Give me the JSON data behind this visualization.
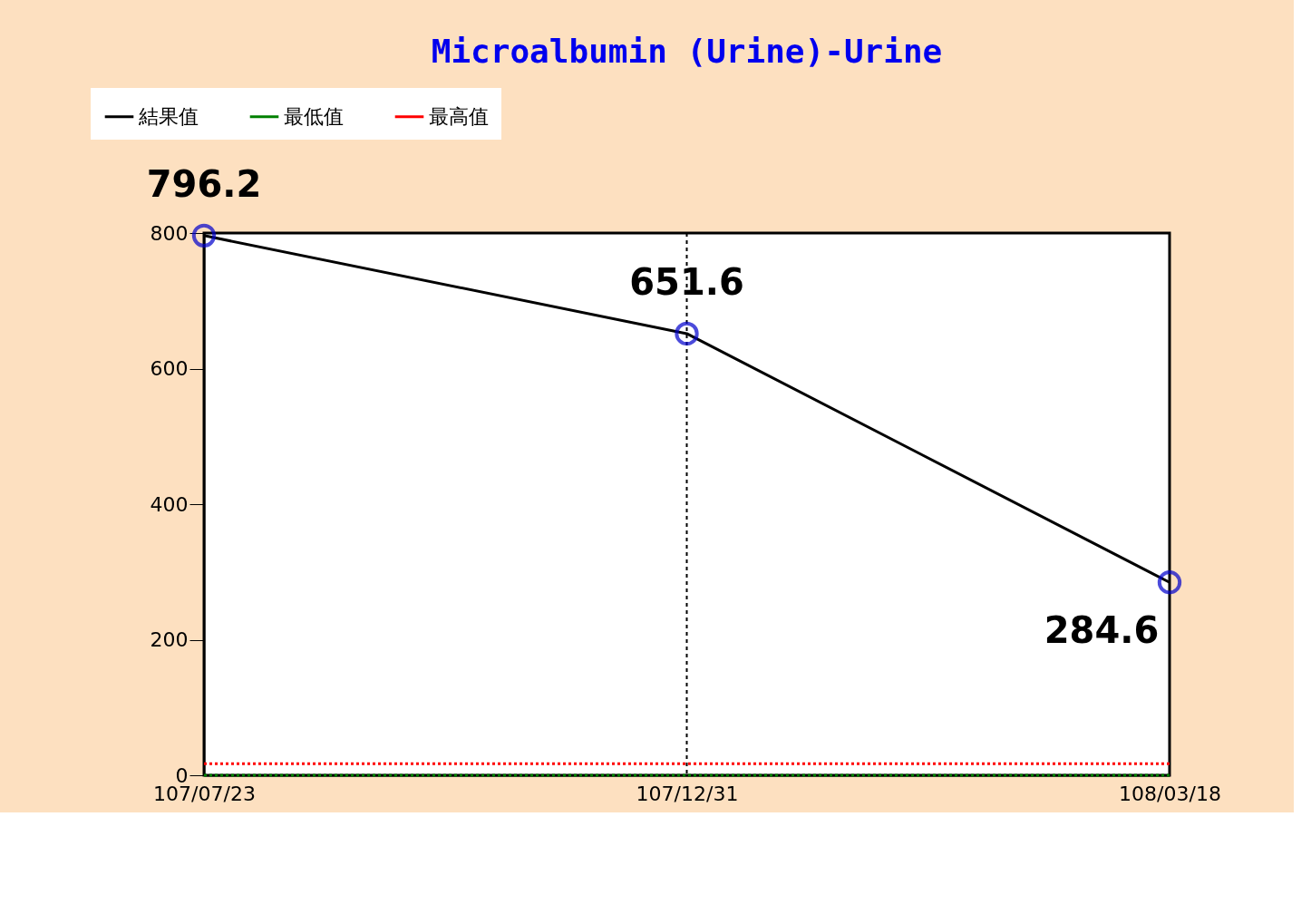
{
  "chart_data": {
    "type": "line",
    "title": "Microalbumin (Urine)-Urine",
    "categories": [
      "107/07/23",
      "107/12/31",
      "108/03/18"
    ],
    "series": [
      {
        "name": "結果值",
        "color": "#000000",
        "colors": [
          "#0000cc",
          "#0000cc",
          "#0000cc"
        ],
        "marker": "circle",
        "line_style": "solid",
        "values": [
          796.2,
          651.6,
          284.6
        ],
        "data_labels": true
      },
      {
        "name": "最低值",
        "color": "#008000",
        "marker": "none",
        "line_style": "dotted",
        "values": [
          0,
          0,
          0
        ]
      },
      {
        "name": "最高值",
        "color": "#ff0000",
        "marker": "none",
        "line_style": "dotted",
        "values": [
          17,
          17,
          17
        ]
      }
    ],
    "ylim": [
      0,
      800
    ],
    "yticks": [
      0,
      200,
      400,
      600,
      800
    ],
    "grid": false,
    "legend": "top left",
    "ref_lines": [
      {
        "axis": "x",
        "value": "107/12/31",
        "color": "#000000",
        "line_style": "dotted"
      }
    ]
  }
}
